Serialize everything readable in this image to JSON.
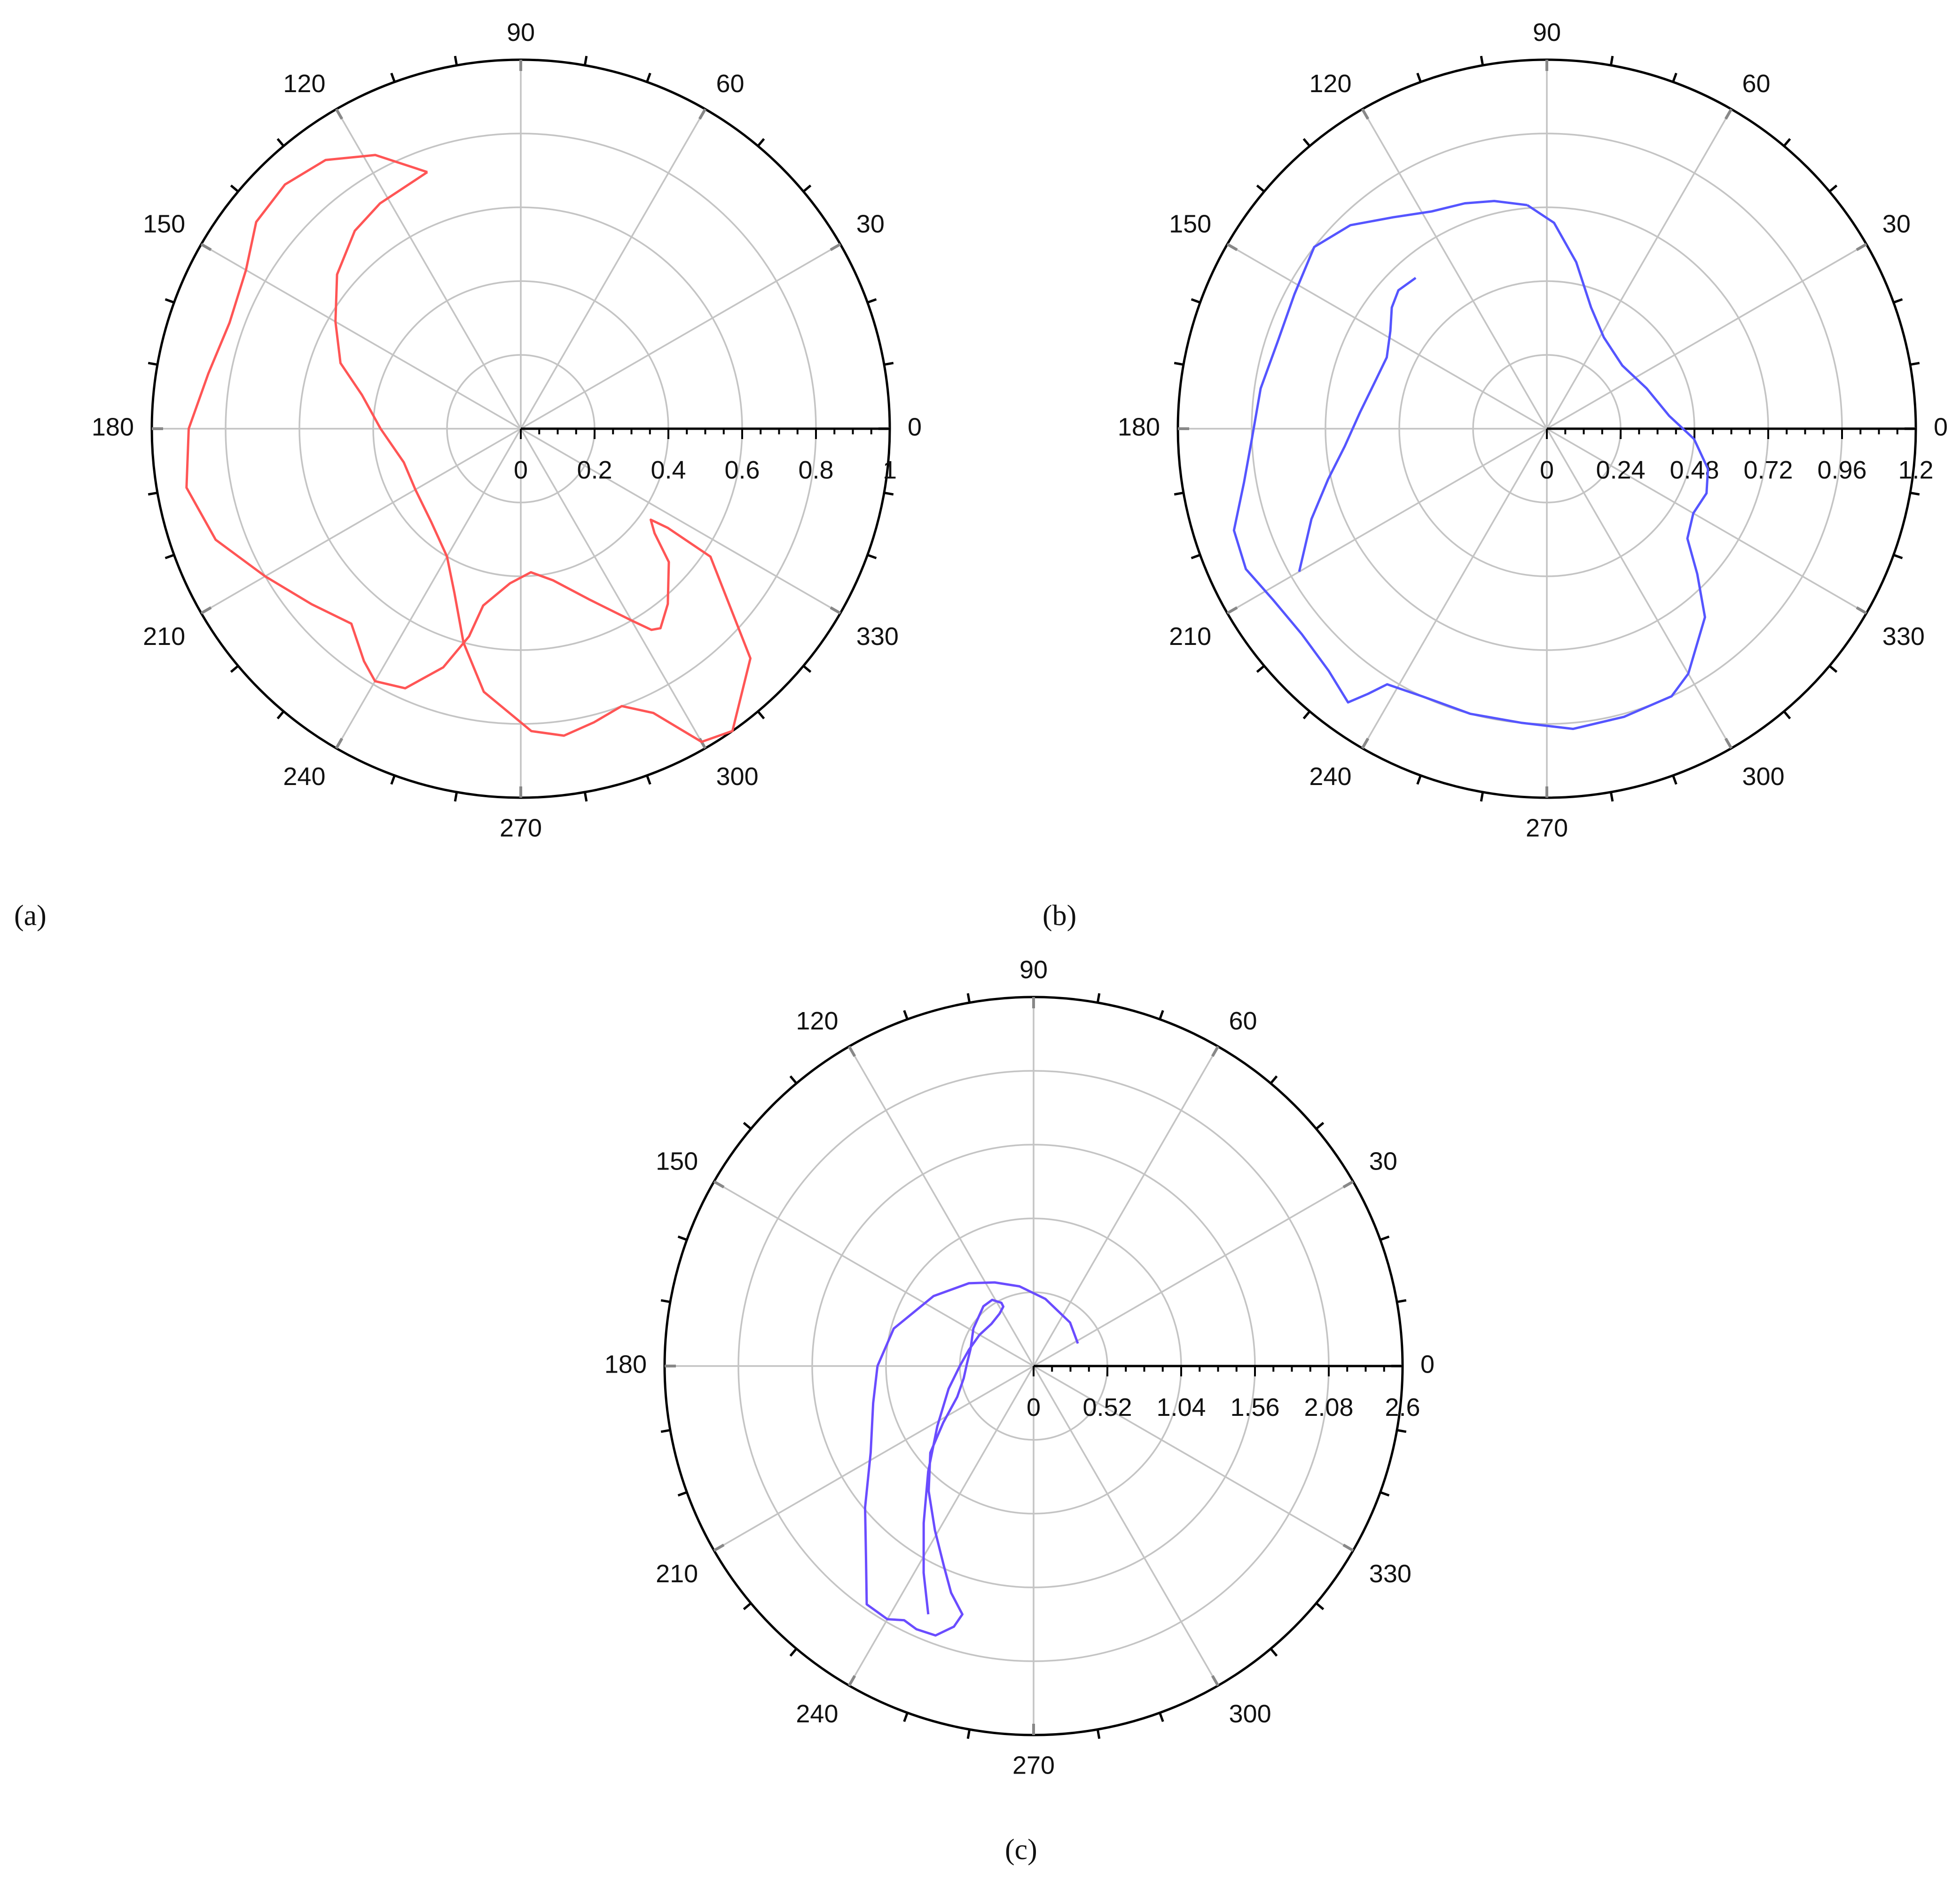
{
  "chart_data": [
    {
      "id": "a",
      "type": "polar-line",
      "panel_label": "(a)",
      "angle_ticks": [
        "0",
        "30",
        "60",
        "90",
        "120",
        "150",
        "180",
        "210",
        "240",
        "270",
        "300",
        "330"
      ],
      "radial_ticks": [
        "0",
        "0.2",
        "0.4",
        "0.6",
        "0.8",
        "1"
      ],
      "rlim": [
        0,
        1
      ],
      "grid": true,
      "color": "#ff5555",
      "series": [
        {
          "points": [
            [
              0.74,
              110
            ],
            [
              0.84,
              118
            ],
            [
              0.9,
              126
            ],
            [
              0.92,
              134
            ],
            [
              0.91,
              142
            ],
            [
              0.86,
              150
            ],
            [
              0.84,
              160
            ],
            [
              0.86,
              170
            ],
            [
              0.9,
              180
            ],
            [
              0.92,
              190
            ],
            [
              0.88,
              200
            ],
            [
              0.8,
              210
            ],
            [
              0.74,
              220
            ],
            [
              0.7,
              229
            ],
            [
              0.76,
              236
            ],
            [
              0.79,
              240
            ],
            [
              0.77,
              246
            ],
            [
              0.68,
              252
            ],
            [
              0.58,
              256
            ],
            [
              0.49,
              258
            ],
            [
              0.42,
              266
            ],
            [
              0.39,
              274
            ],
            [
              0.42,
              282
            ],
            [
              0.5,
              292
            ],
            [
              0.6,
              300
            ],
            [
              0.65,
              303
            ],
            [
              0.66,
              305
            ],
            [
              0.62,
              310
            ],
            [
              0.54,
              318
            ],
            [
              0.46,
              322
            ],
            [
              0.43,
              325
            ],
            [
              0.48,
              326
            ],
            [
              0.62,
              326
            ],
            [
              0.88,
              315
            ],
            [
              1.0,
              305
            ],
            [
              0.98,
              300
            ],
            [
              0.85,
              295
            ],
            [
              0.8,
              290
            ],
            [
              0.82,
              284
            ],
            [
              0.84,
              278
            ],
            [
              0.82,
              272
            ],
            [
              0.72,
              262
            ],
            [
              0.6,
              255
            ],
            [
              0.48,
              248
            ],
            [
              0.4,
              240
            ],
            [
              0.35,
              226
            ],
            [
              0.33,
              210
            ],
            [
              0.33,
              196
            ],
            [
              0.38,
              180
            ],
            [
              0.44,
              168
            ],
            [
              0.52,
              160
            ],
            [
              0.58,
              150
            ],
            [
              0.65,
              140
            ],
            [
              0.7,
              130
            ],
            [
              0.72,
              122
            ],
            [
              0.74,
              110
            ]
          ]
        }
      ]
    },
    {
      "id": "b",
      "type": "polar-line",
      "panel_label": "(b)",
      "angle_ticks": [
        "0",
        "30",
        "60",
        "90",
        "120",
        "150",
        "180",
        "210",
        "240",
        "270",
        "300",
        "330"
      ],
      "radial_ticks": [
        "0",
        "0.24",
        "0.48",
        "0.72",
        "0.96",
        "1.2"
      ],
      "rlim": [
        0,
        1.2
      ],
      "grid": true,
      "color": "#5555ff",
      "series": [
        {
          "points": [
            [
              0.73,
              95
            ],
            [
              0.76,
              103
            ],
            [
              0.78,
              110
            ],
            [
              0.8,
              118
            ],
            [
              0.85,
              126
            ],
            [
              0.92,
              134
            ],
            [
              0.96,
              142
            ],
            [
              0.93,
              152
            ],
            [
              0.92,
              162
            ],
            [
              0.94,
              172
            ],
            [
              0.96,
              182
            ],
            [
              1.0,
              190
            ],
            [
              1.07,
              198
            ],
            [
              1.08,
              205
            ],
            [
              1.05,
              212
            ],
            [
              1.04,
              220
            ],
            [
              1.06,
              228
            ],
            [
              1.1,
              234
            ],
            [
              1.04,
              236
            ],
            [
              0.98,
              238
            ],
            [
              0.96,
              245
            ],
            [
              0.96,
              255
            ],
            [
              0.96,
              265
            ],
            [
              0.98,
              275
            ],
            [
              0.97,
              285
            ],
            [
              0.96,
              295
            ],
            [
              0.92,
              300
            ],
            [
              0.8,
              310
            ],
            [
              0.68,
              316
            ],
            [
              0.58,
              322
            ],
            [
              0.55,
              330
            ],
            [
              0.56,
              338
            ],
            [
              0.54,
              346
            ],
            [
              0.48,
              356
            ],
            [
              0.4,
              6
            ],
            [
              0.35,
              22
            ],
            [
              0.32,
              40
            ],
            [
              0.35,
              58
            ],
            [
              0.42,
              70
            ],
            [
              0.55,
              80
            ],
            [
              0.67,
              88
            ],
            [
              0.73,
              95
            ]
          ]
        },
        {
          "points": [
            [
              0.65,
              131
            ],
            [
              0.66,
              137
            ],
            [
              0.64,
              142
            ],
            [
              0.6,
              148
            ],
            [
              0.57,
              156
            ],
            [
              0.58,
              165
            ],
            [
              0.61,
              175
            ],
            [
              0.66,
              185
            ],
            [
              0.73,
              193
            ],
            [
              0.82,
              201
            ],
            [
              0.93,
              210
            ]
          ]
        }
      ]
    },
    {
      "id": "c",
      "type": "polar-line",
      "panel_label": "(c)",
      "angle_ticks": [
        "0",
        "30",
        "60",
        "90",
        "120",
        "150",
        "180",
        "210",
        "240",
        "270",
        "300",
        "330"
      ],
      "radial_ticks": [
        "0",
        "0.52",
        "1.04",
        "1.56",
        "2.08",
        "2.6"
      ],
      "rlim": [
        0,
        2.6
      ],
      "grid": true,
      "color": "#6a4cff",
      "series": [
        {
          "points": [
            [
              0.35,
              27
            ],
            [
              0.4,
              50
            ],
            [
              0.48,
              80
            ],
            [
              0.57,
              100
            ],
            [
              0.65,
              115
            ],
            [
              0.74,
              128
            ],
            [
              0.86,
              145
            ],
            [
              1.02,
              165
            ],
            [
              1.1,
              180
            ],
            [
              1.16,
              193
            ],
            [
              1.3,
              208
            ],
            [
              1.55,
              220
            ],
            [
              1.8,
              229
            ],
            [
              2.05,
              235
            ],
            [
              2.06,
              240
            ],
            [
              2.01,
              243
            ],
            [
              2.03,
              246
            ],
            [
              2.02,
              250
            ],
            [
              1.92,
              253
            ],
            [
              1.82,
              254
            ],
            [
              1.7,
              250
            ],
            [
              1.55,
              246
            ],
            [
              1.35,
              239
            ],
            [
              1.15,
              230
            ],
            [
              0.95,
              220
            ],
            [
              0.75,
              212
            ],
            [
              0.58,
              202
            ],
            [
              0.5,
              190
            ],
            [
              0.47,
              178
            ],
            [
              0.46,
              165
            ],
            [
              0.5,
              148
            ],
            [
              0.55,
              130
            ],
            [
              0.55,
              122
            ],
            [
              0.5,
              117
            ],
            [
              0.47,
              117
            ],
            [
              0.44,
              123
            ],
            [
              0.42,
              135
            ],
            [
              0.44,
              150
            ],
            [
              0.47,
              166
            ],
            [
              0.52,
              180
            ],
            [
              0.62,
              195
            ],
            [
              0.8,
              212
            ],
            [
              1.05,
              225
            ],
            [
              1.35,
              235
            ],
            [
              1.65,
              242
            ],
            [
              1.9,
              247
            ]
          ]
        }
      ]
    }
  ]
}
